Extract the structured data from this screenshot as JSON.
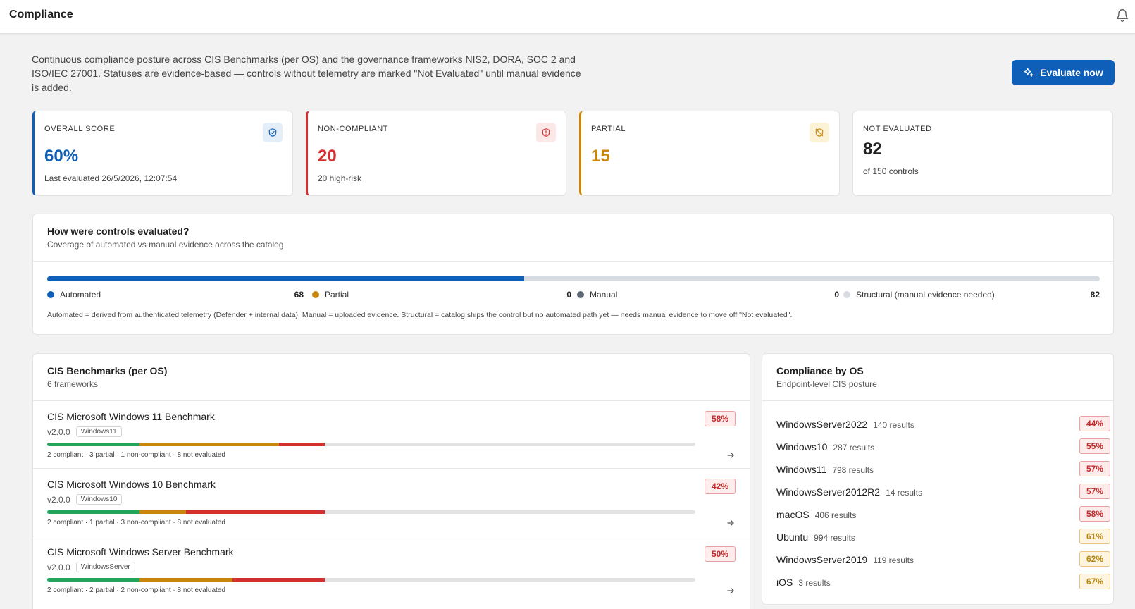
{
  "header": {
    "title": "Compliance",
    "bell_icon": "bell-icon"
  },
  "intro": "Continuous compliance posture across CIS Benchmarks (per OS) and the governance frameworks NIS2, DORA, SOC 2 and ISO/IEC 27001. Statuses are evidence-based — controls without telemetry are marked \"Not Evaluated\" until manual evidence is added.",
  "evaluate_button": {
    "label": "Evaluate now",
    "icon": "sparkle-icon"
  },
  "colors": {
    "accent": "#0f5fb8",
    "red": "#d32f2f",
    "amber": "#c8860b",
    "green": "#22a45a",
    "gray": "#d7dbe2"
  },
  "stats": [
    {
      "label": "OVERALL SCORE",
      "value": "60%",
      "sub": "Last evaluated 26/5/2026, 12:07:54",
      "icon": "shield-check-icon"
    },
    {
      "label": "NON-COMPLIANT",
      "value": "20",
      "sub": "20 high-risk",
      "icon": "shield-alert-icon"
    },
    {
      "label": "PARTIAL",
      "value": "15",
      "sub": "",
      "icon": "shield-off-icon"
    },
    {
      "label": "NOT EVALUATED",
      "value": "82",
      "sub": "of 150 controls"
    }
  ],
  "coverage": {
    "title": "How were controls evaluated?",
    "subtitle": "Coverage of automated vs manual evidence across the catalog",
    "automated_fraction": 0.453,
    "legend": [
      {
        "label": "Automated",
        "count": "68"
      },
      {
        "label": "Partial",
        "count": "0"
      },
      {
        "label": "Manual",
        "count": "0"
      },
      {
        "label": "Structural (manual evidence needed)",
        "count": "82"
      }
    ],
    "note": "Automated = derived from authenticated telemetry (Defender + internal data). Manual = uploaded evidence. Structural = catalog ships the control but no automated path yet — needs manual evidence to move off \"Not evaluated\"."
  },
  "benchmarks": {
    "title": "CIS Benchmarks (per OS)",
    "subtitle": "6 frameworks",
    "items": [
      {
        "name": "CIS Microsoft Windows 11 Benchmark",
        "version": "v2.0.0",
        "tag": "Windows11",
        "percent": "58%",
        "summary": "2 compliant · 3 partial · 1 non-compliant · 8 not evaluated",
        "compliant": 2,
        "partial": 3,
        "noncompliant": 1,
        "not_evaluated": 8
      },
      {
        "name": "CIS Microsoft Windows 10 Benchmark",
        "version": "v2.0.0",
        "tag": "Windows10",
        "percent": "42%",
        "summary": "2 compliant · 1 partial · 3 non-compliant · 8 not evaluated",
        "compliant": 2,
        "partial": 1,
        "noncompliant": 3,
        "not_evaluated": 8
      },
      {
        "name": "CIS Microsoft Windows Server Benchmark",
        "version": "v2.0.0",
        "tag": "WindowsServer",
        "percent": "50%",
        "summary": "2 compliant · 2 partial · 2 non-compliant · 8 not evaluated",
        "compliant": 2,
        "partial": 2,
        "noncompliant": 2,
        "not_evaluated": 8
      }
    ]
  },
  "by_os": {
    "title": "Compliance by OS",
    "subtitle": "Endpoint-level CIS posture",
    "items": [
      {
        "name": "WindowsServer2022",
        "results": "140 results",
        "percent": "44%",
        "level": "red"
      },
      {
        "name": "Windows10",
        "results": "287 results",
        "percent": "55%",
        "level": "red"
      },
      {
        "name": "Windows11",
        "results": "798 results",
        "percent": "57%",
        "level": "red"
      },
      {
        "name": "WindowsServer2012R2",
        "results": "14 results",
        "percent": "57%",
        "level": "red"
      },
      {
        "name": "macOS",
        "results": "406 results",
        "percent": "58%",
        "level": "red"
      },
      {
        "name": "Ubuntu",
        "results": "994 results",
        "percent": "61%",
        "level": "amber"
      },
      {
        "name": "WindowsServer2019",
        "results": "119 results",
        "percent": "62%",
        "level": "amber"
      },
      {
        "name": "iOS",
        "results": "3 results",
        "percent": "67%",
        "level": "amber"
      }
    ]
  }
}
